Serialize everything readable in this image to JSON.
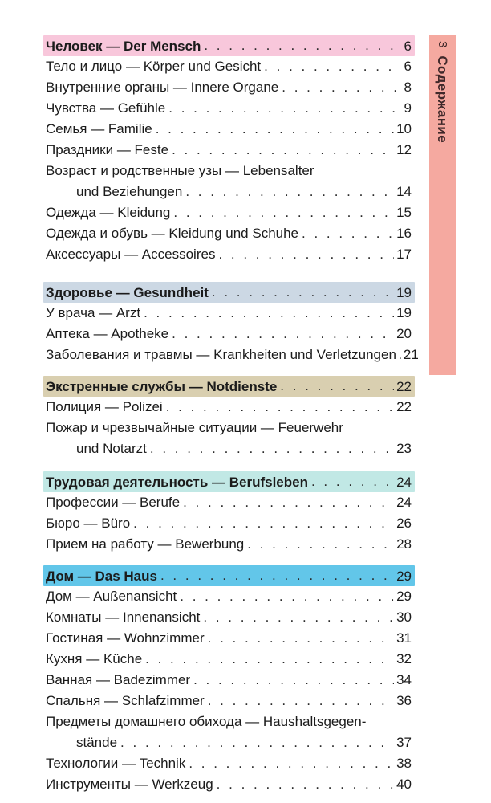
{
  "tab": {
    "page_number": "3",
    "label": "Содержание",
    "bg": "#f5a9a0",
    "text_color": "#40292a"
  },
  "colors": {
    "page_background": "#ffffff",
    "body_text": "#1b1b1b",
    "header_mensch": "#f8c7db",
    "header_gesundheit": "#ccd8e4",
    "header_notdienste": "#d9cfb0",
    "header_berufsleben": "#c1e8e5",
    "header_das_haus": "#62c6e9"
  },
  "sections": [
    {
      "header": {
        "title": "Человек — Der Mensch",
        "page": "6",
        "bg": "#f8c7db"
      },
      "entries": [
        {
          "title": "Тело и лицо — Körper und Gesicht",
          "page": "6"
        },
        {
          "title": "Внутренние органы — Innere Organe",
          "page": "8"
        },
        {
          "title": "Чувства — Gefühle",
          "page": "9"
        },
        {
          "title": "Семья — Familie",
          "page": "10"
        },
        {
          "title": "Праздники — Feste",
          "page": "12"
        },
        {
          "pre": "Возраст и родственные узы — Lebensalter",
          "title": "und Beziehungen",
          "page": "14"
        },
        {
          "title": "Одежда — Kleidung",
          "page": "15"
        },
        {
          "title": "Одежда и обувь — Kleidung und Schuhe",
          "page": "16"
        },
        {
          "title": "Аксессуары — Accessoires",
          "page": "17"
        }
      ]
    },
    {
      "header": {
        "title": "Здоровье — Gesundheit",
        "page": "19",
        "bg": "#ccd8e4"
      },
      "entries": [
        {
          "title": "У врача — Arzt",
          "page": "19"
        },
        {
          "title": "Аптека — Apotheke",
          "page": "20"
        },
        {
          "title": "Заболевания и травмы — Krankheiten und Verletzungen",
          "page": "21"
        }
      ]
    },
    {
      "header": {
        "title": "Экстренные службы — Notdienste",
        "page": "22",
        "bg": "#d9cfb0"
      },
      "entries": [
        {
          "title": "Полиция — Polizei",
          "page": "22"
        },
        {
          "pre": "Пожар и чрезвычайные ситуации — Feuerwehr",
          "title": "und Notarzt",
          "page": "23"
        }
      ]
    },
    {
      "header": {
        "title": "Трудовая деятельность — Berufsleben",
        "page": "24",
        "bg": "#c1e8e5"
      },
      "entries": [
        {
          "title": "Профессии — Berufe",
          "page": "24"
        },
        {
          "title": "Бюро — Büro",
          "page": "26"
        },
        {
          "title": "Прием на работу — Bewerbung",
          "page": "28"
        }
      ]
    },
    {
      "header": {
        "title": "Дом — Das Haus",
        "page": "29",
        "bg": "#62c6e9"
      },
      "entries": [
        {
          "title": "Дом — Außenansicht",
          "page": "29"
        },
        {
          "title": "Комнаты — Innenansicht",
          "page": "30"
        },
        {
          "title": "Гостиная — Wohnzimmer",
          "page": "31"
        },
        {
          "title": "Кухня — Küche",
          "page": "32"
        },
        {
          "title": "Ванная — Badezimmer",
          "page": "34"
        },
        {
          "title": "Спальня — Schlafzimmer",
          "page": "36"
        },
        {
          "pre": "Предметы домашнего обихода — Haushaltsgegen-",
          "title": "stände",
          "page": "37"
        },
        {
          "title": "Технологии — Technik",
          "page": "38"
        },
        {
          "title": "Инструменты — Werkzeug",
          "page": "40"
        }
      ]
    }
  ]
}
